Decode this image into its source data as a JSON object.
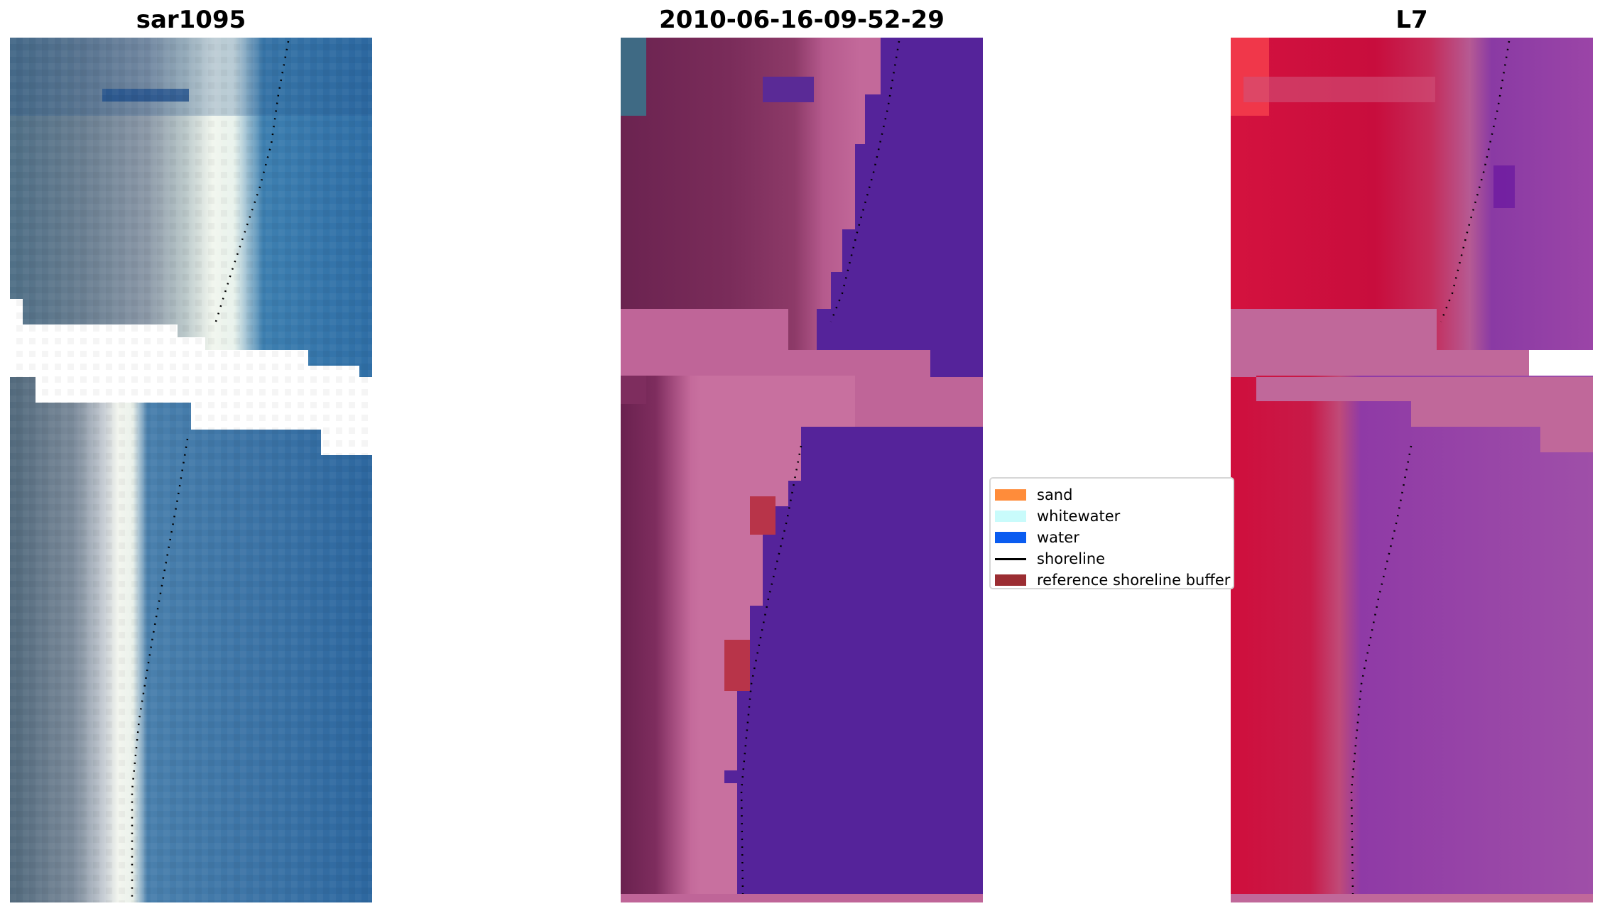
{
  "panels": [
    {
      "title": "sar1095"
    },
    {
      "title": "2010-06-16-09-52-29"
    },
    {
      "title": "L7"
    }
  ],
  "legend": {
    "items": [
      {
        "label": "sand",
        "color": "#ff8c3a",
        "kind": "patch"
      },
      {
        "label": "whitewater",
        "color": "#c9fbfb",
        "kind": "patch"
      },
      {
        "label": "water",
        "color": "#0a5cf0",
        "kind": "patch"
      },
      {
        "label": "shoreline",
        "color": "#000000",
        "kind": "line"
      },
      {
        "label": "reference shoreline buffer",
        "color": "#9b2d32",
        "kind": "patch"
      }
    ]
  }
}
